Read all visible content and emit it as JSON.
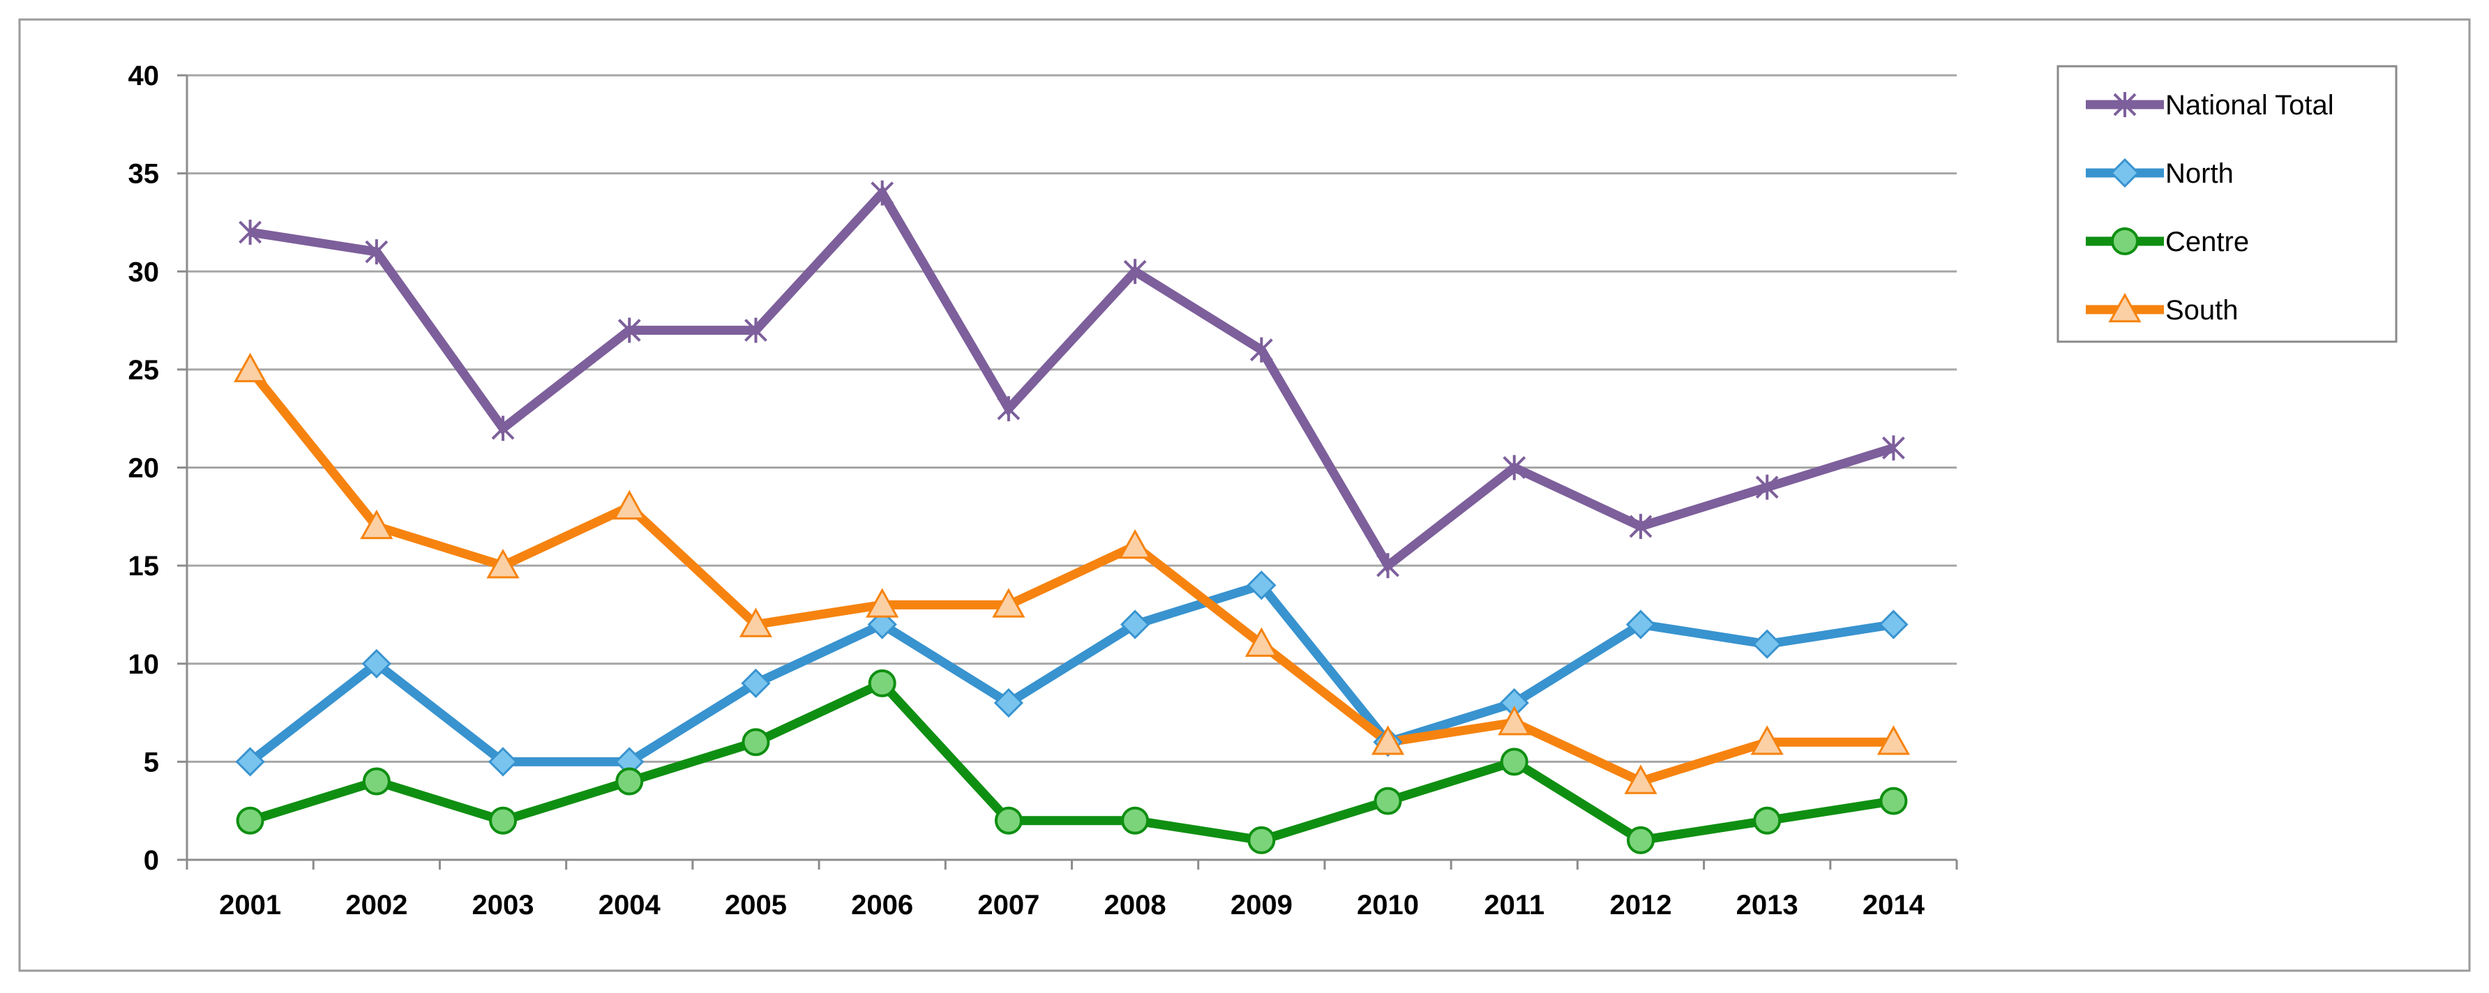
{
  "chart_data": {
    "type": "line",
    "title": "",
    "xlabel": "",
    "ylabel": "",
    "ylim": [
      0,
      40
    ],
    "yticks": [
      0,
      5,
      10,
      15,
      20,
      25,
      30,
      35,
      40
    ],
    "grid": true,
    "legend_position": "top-right",
    "categories": [
      "2001",
      "2002",
      "2003",
      "2004",
      "2005",
      "2006",
      "2007",
      "2008",
      "2009",
      "2010",
      "2011",
      "2012",
      "2013",
      "2014"
    ],
    "series": [
      {
        "name": "National Total",
        "color": "#7d5f9b",
        "marker": "star",
        "values": [
          32,
          31,
          22,
          27,
          27,
          34,
          23,
          30,
          26,
          15,
          20,
          17,
          19,
          21
        ]
      },
      {
        "name": "North",
        "color": "#3893cf",
        "marker": "diamond",
        "values": [
          5,
          10,
          5,
          5,
          9,
          12,
          8,
          12,
          14,
          6,
          8,
          12,
          11,
          12
        ]
      },
      {
        "name": "Centre",
        "color": "#0f8f12",
        "marker": "circle",
        "values": [
          2,
          4,
          2,
          4,
          6,
          9,
          2,
          2,
          1,
          3,
          5,
          1,
          2,
          3
        ]
      },
      {
        "name": "South",
        "color": "#f6830f",
        "marker": "triangle",
        "values": [
          25,
          17,
          15,
          18,
          12,
          13,
          13,
          16,
          11,
          6,
          7,
          4,
          6,
          6
        ]
      }
    ]
  }
}
